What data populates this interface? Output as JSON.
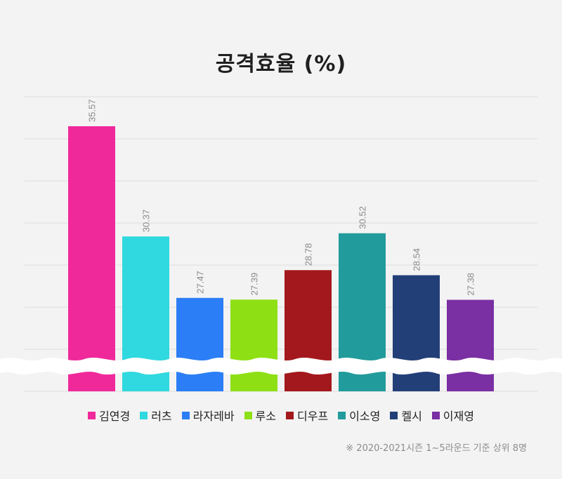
{
  "chart_data": {
    "type": "bar",
    "title": "공격효율 (%)",
    "xlabel": "",
    "ylabel": "",
    "categories": [
      "김연경",
      "러츠",
      "라자레바",
      "루소",
      "디우프",
      "이소영",
      "켈시",
      "이재영"
    ],
    "values": [
      35.57,
      30.37,
      27.47,
      27.39,
      28.78,
      30.52,
      28.54,
      27.38
    ],
    "value_labels": [
      "35.57",
      "30.37",
      "27.47",
      "27.39",
      "28.78",
      "30.52",
      "28.54",
      "27.38"
    ],
    "colors": [
      "#f0299b",
      "#2fd9df",
      "#2b7ef6",
      "#8ee015",
      "#a3181c",
      "#219b9b",
      "#223f77",
      "#7a2fa3"
    ],
    "axis_break": true,
    "grid": true,
    "legend": "bottom"
  },
  "footnote": "※ 2020-2021시즌 1~5라운드 기준 상위 8명"
}
